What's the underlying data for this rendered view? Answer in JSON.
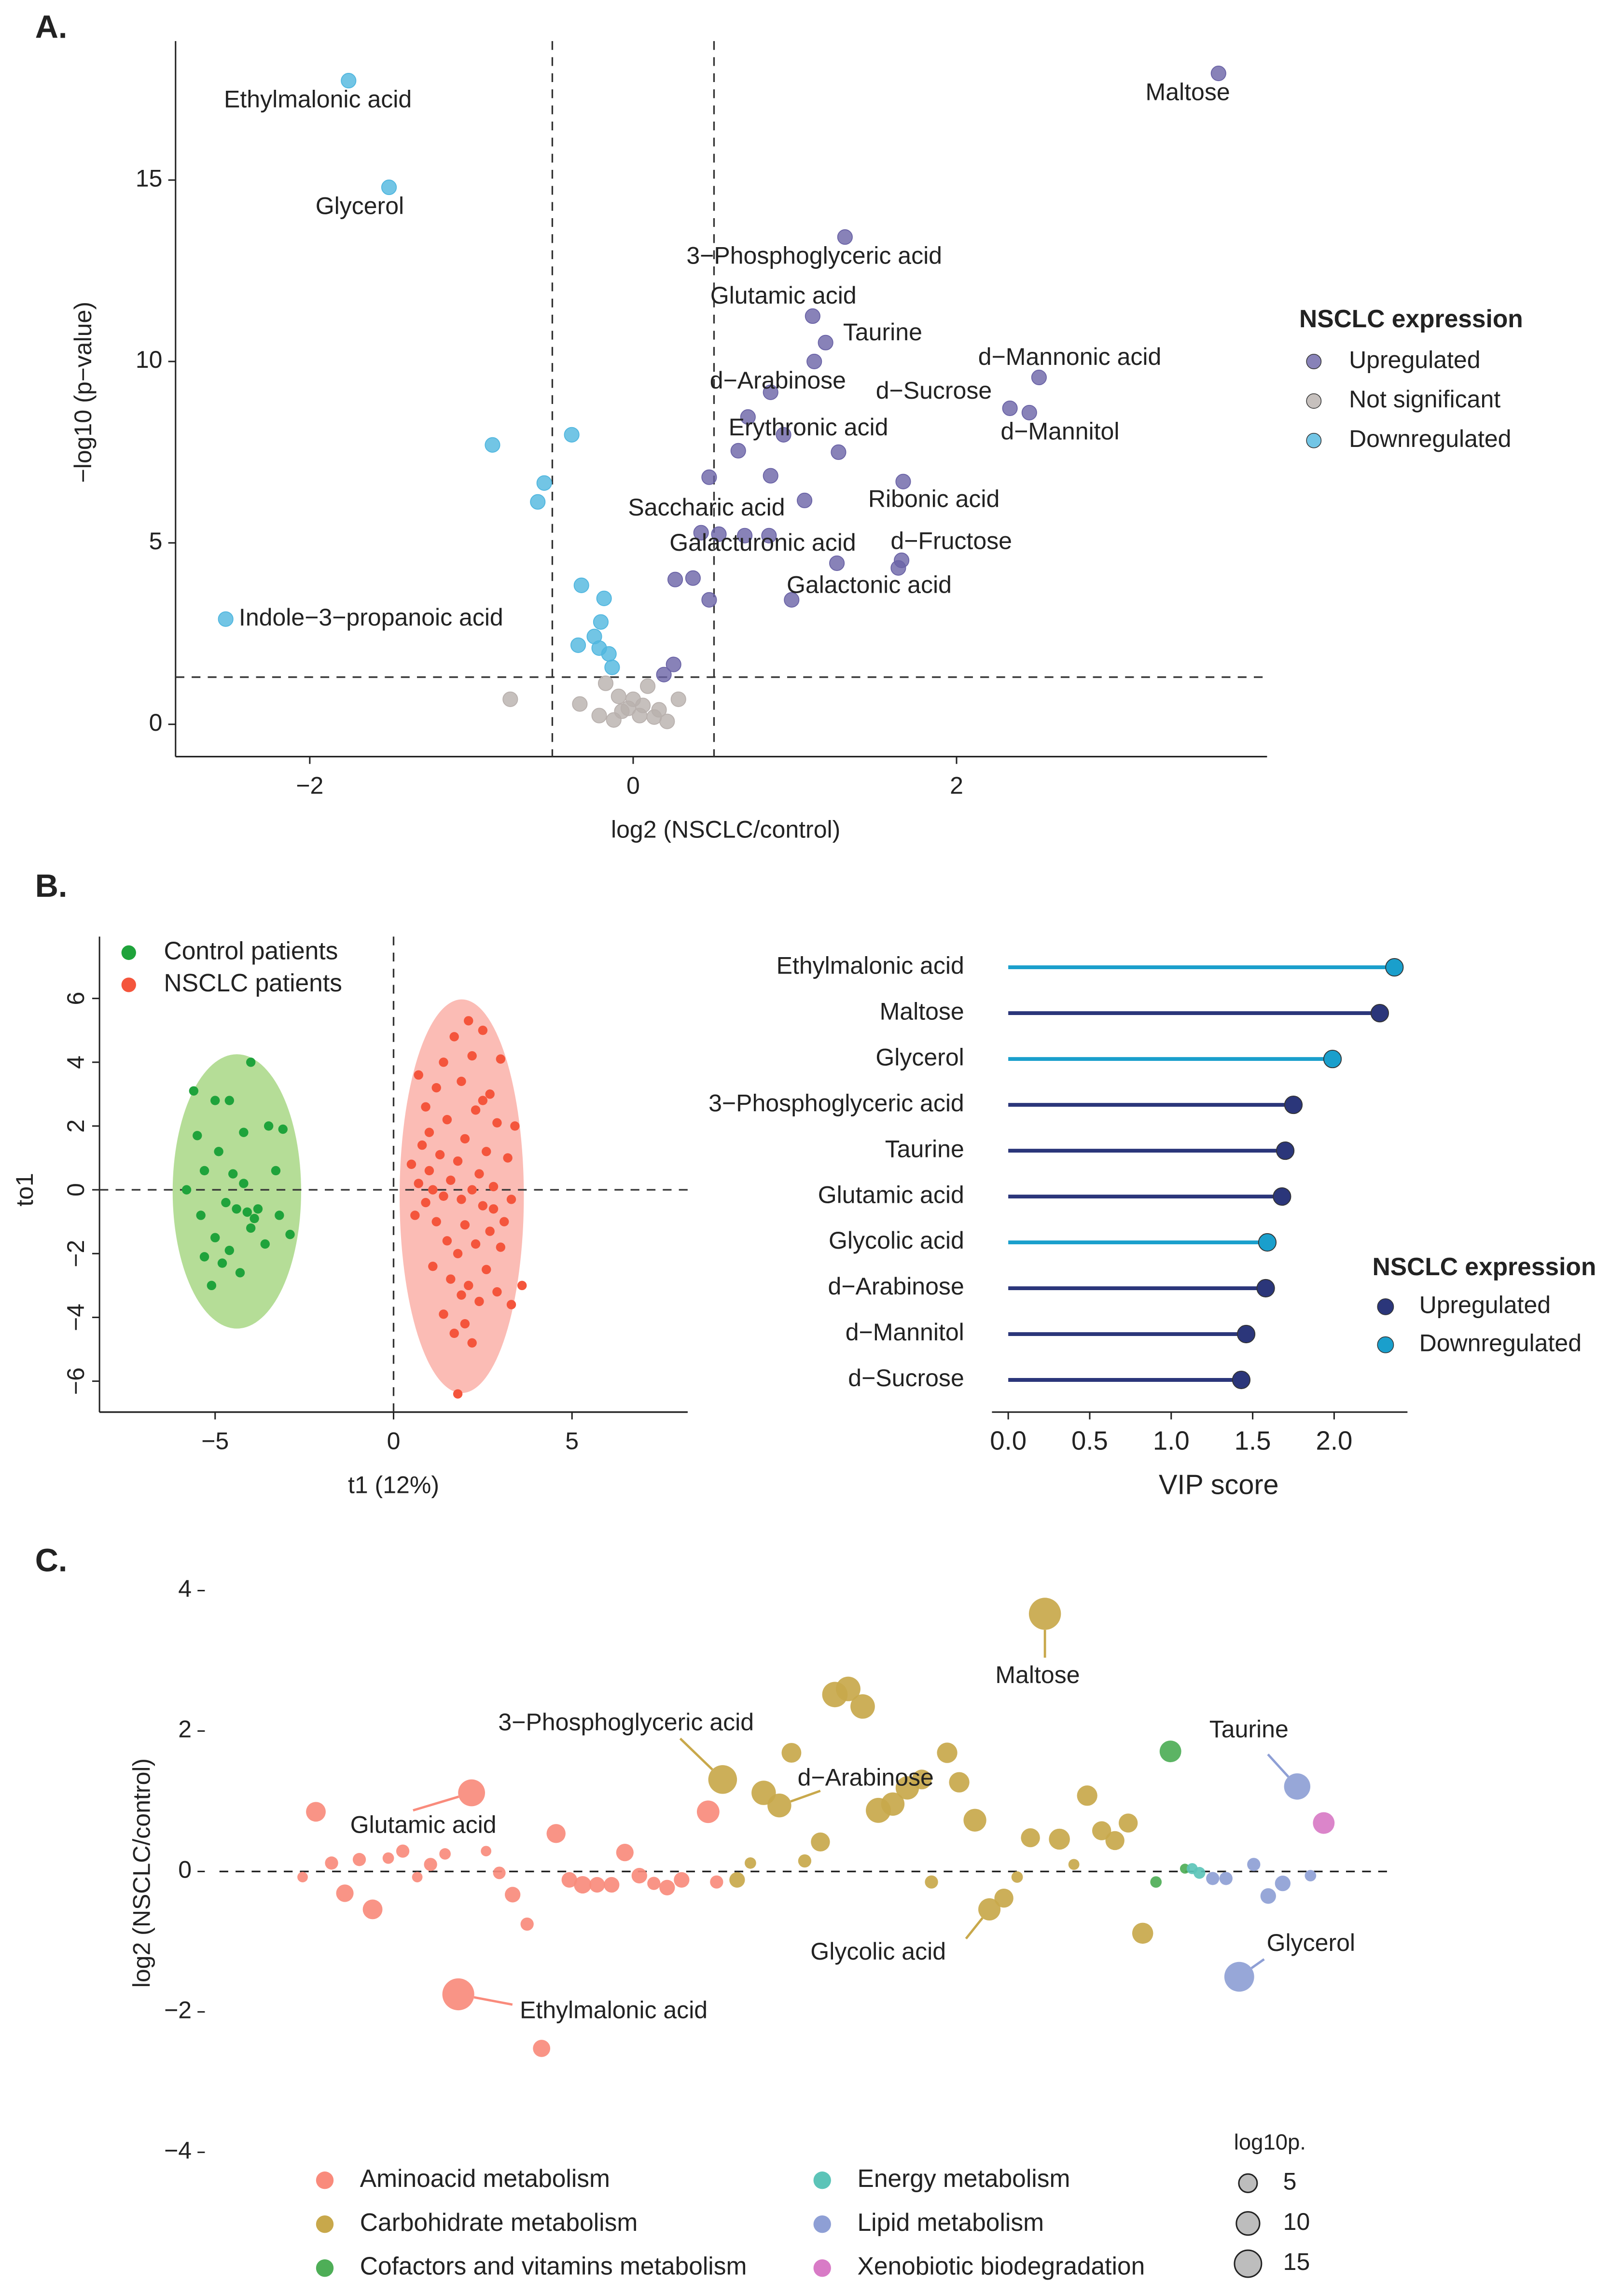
{
  "chart_data": [
    {
      "panel": "A.",
      "type": "scatter",
      "x_label": "log2 (NSCLC/control)",
      "y_label": "−log10 (p−value)",
      "xlim": [
        -2.83,
        3.92
      ],
      "ylim": [
        -0.89,
        18.83
      ],
      "xticks": [
        {
          "value": -2,
          "label": "−2"
        },
        0,
        2
      ],
      "yticks": [
        0,
        5,
        10,
        15
      ],
      "cutoff_x": [
        -0.5,
        0.5
      ],
      "cutoff_y": 1.3,
      "legend": "right",
      "legend_title": "NSCLC expression",
      "series": [
        {
          "name": "Upregulated",
          "color": "#6a63a6",
          "x": [
            3.62,
            1.31,
            1.11,
            1.19,
            1.12,
            0.85,
            2.51,
            2.33,
            2.45,
            0.71,
            0.93,
            0.65,
            1.27,
            0.47,
            0.85,
            1.67,
            1.06,
            0.42,
            0.53,
            0.69,
            0.84,
            1.66,
            1.64,
            1.26,
            0.26,
            0.37,
            0.98,
            0.47,
            0.25,
            0.19
          ],
          "values": [
            17.94,
            13.43,
            11.25,
            10.52,
            10.0,
            9.15,
            9.56,
            8.71,
            8.59,
            8.47,
            7.98,
            7.54,
            7.5,
            6.81,
            6.85,
            6.69,
            6.17,
            5.28,
            5.24,
            5.2,
            5.2,
            4.52,
            4.31,
            4.44,
            3.99,
            4.03,
            3.43,
            3.43,
            1.65,
            1.37
          ],
          "labels": [
            "Maltose",
            "3−Phosphoglyceric acid",
            "Glutamic acid",
            "Taurine",
            null,
            "d−Arabinose",
            "d−Mannonic acid",
            "d−Sucrose",
            "d−Mannitol",
            null,
            "Erythronic acid",
            null,
            null,
            null,
            null,
            "Ribonic acid",
            "Saccharic acid",
            null,
            "Galacturonic acid",
            null,
            null,
            "d−Fructose",
            null,
            null,
            null,
            null,
            "Galactonic acid",
            null,
            null,
            null
          ]
        },
        {
          "name": "Not significant",
          "color": "#b8b0ad",
          "x": [
            -0.76,
            -0.33,
            -0.17,
            0.09,
            0.28,
            -0.09,
            -0.03,
            0.04,
            0.13,
            0.21,
            -0.12,
            -0.21,
            -0.07,
            0.0,
            0.06,
            0.16
          ],
          "values": [
            0.69,
            0.56,
            1.13,
            1.05,
            0.69,
            0.77,
            0.44,
            0.24,
            0.2,
            0.08,
            0.12,
            0.24,
            0.36,
            0.69,
            0.52,
            0.4
          ]
        },
        {
          "name": "Downregulated",
          "color": "#4fb6df",
          "x": [
            -1.76,
            -1.51,
            -0.87,
            -0.38,
            -0.55,
            -0.59,
            -2.52,
            -0.32,
            -0.18,
            -0.2,
            -0.34,
            -0.24,
            -0.21,
            -0.15,
            -0.13
          ],
          "values": [
            17.74,
            14.8,
            7.7,
            7.98,
            6.65,
            6.13,
            2.9,
            3.83,
            3.47,
            2.82,
            2.18,
            2.42,
            2.1,
            1.94,
            1.57
          ],
          "labels": [
            "Ethylmalonic acid",
            "Glycerol",
            null,
            null,
            null,
            null,
            "Indole−3−propanoic acid",
            null,
            null,
            null,
            null,
            null,
            null,
            null,
            null
          ]
        }
      ]
    },
    {
      "panel": "B.",
      "type": "scatter",
      "x_label": "t1 (12%)",
      "y_label": "to1",
      "xlim": [
        -8.24,
        8.24
      ],
      "ylim": [
        -6.97,
        7.94
      ],
      "xticks": [
        {
          "value": -5,
          "label": "−5"
        },
        0,
        5
      ],
      "yticks": [
        {
          "value": -6,
          "label": "−6"
        },
        {
          "value": -4,
          "label": "−4"
        },
        {
          "value": -2,
          "label": "−2"
        },
        0,
        2,
        4,
        6
      ],
      "legend": "top-left",
      "series": [
        {
          "name": "Control patients",
          "color": "#1fa33b",
          "ellipse_color": "#b5dd97",
          "ellipse": {
            "cx": -4.39,
            "cy": -0.05,
            "rx": 1.8,
            "ry": 4.3
          },
          "x": [
            -5.6,
            -5.0,
            -4.0,
            -3.5,
            -3.1,
            -4.9,
            -5.3,
            -5.8,
            -4.5,
            -4.2,
            -3.8,
            -3.2,
            -2.9,
            -4.7,
            -4.4,
            -4.1,
            -3.9,
            -5.0,
            -4.6,
            -5.3,
            -4.3,
            -4.8,
            -5.1,
            -3.6,
            -4.0,
            -5.5,
            -4.2,
            -3.3,
            -4.6,
            -5.4
          ],
          "values": [
            3.1,
            2.8,
            4.0,
            2.0,
            1.9,
            1.2,
            0.6,
            0.0,
            0.5,
            0.2,
            -0.6,
            -0.8,
            -1.4,
            -0.4,
            -0.6,
            -0.7,
            -0.9,
            -1.5,
            -1.9,
            -2.1,
            -2.6,
            -2.3,
            -3.0,
            -1.7,
            -1.2,
            1.7,
            1.8,
            0.6,
            2.8,
            -0.8
          ]
        },
        {
          "name": "NSCLC patients",
          "color": "#f4553c",
          "ellipse_color": "#fbbcb5",
          "ellipse": {
            "cx": 1.91,
            "cy": -0.2,
            "rx": 1.74,
            "ry": 6.17
          },
          "x": [
            2.1,
            2.5,
            1.7,
            3.0,
            0.7,
            2.2,
            1.2,
            2.7,
            1.9,
            3.4,
            0.9,
            1.5,
            2.3,
            2.9,
            1.0,
            2.0,
            2.6,
            1.3,
            3.2,
            0.5,
            1.8,
            2.4,
            0.7,
            1.1,
            1.6,
            2.2,
            2.8,
            3.3,
            0.9,
            1.4,
            1.9,
            2.5,
            0.6,
            1.2,
            2.0,
            2.7,
            3.0,
            1.5,
            1.8,
            2.3,
            1.1,
            2.6,
            1.6,
            2.1,
            3.6,
            3.3,
            1.9,
            2.4,
            1.4,
            2.0,
            2.9,
            1.7,
            2.2,
            1.8,
            0.8,
            2.5,
            1.4,
            2.8,
            1.0,
            3.1
          ],
          "values": [
            5.3,
            5.0,
            4.8,
            4.1,
            3.6,
            4.2,
            3.2,
            3.0,
            3.4,
            2.0,
            2.6,
            2.2,
            2.5,
            2.1,
            1.8,
            1.6,
            1.2,
            1.1,
            1.0,
            0.8,
            0.9,
            0.5,
            0.2,
            0.0,
            0.3,
            0.0,
            0.1,
            -0.3,
            -0.4,
            -0.2,
            -0.3,
            -0.5,
            -0.8,
            -1.0,
            -1.1,
            -1.3,
            -1.8,
            -1.6,
            -2.0,
            -1.7,
            -2.4,
            -2.5,
            -2.8,
            -3.0,
            -3.0,
            -3.6,
            -3.3,
            -3.5,
            -3.9,
            -4.2,
            -3.2,
            -4.5,
            -4.8,
            -6.4,
            1.4,
            2.8,
            4.0,
            -0.6,
            0.6,
            -1.0
          ]
        }
      ]
    },
    {
      "type": "lollipop",
      "x_label": "VIP score",
      "legend_title": "NSCLC expression",
      "categories": [
        "Ethylmalonic acid",
        "Maltose",
        "Glycerol",
        "3−Phosphoglyceric acid",
        "Taurine",
        "Glutamic acid",
        "Glycolic acid",
        "d−Arabinose",
        "d−Mannitol",
        "d−Sucrose"
      ],
      "xlim": [
        -0.1,
        2.45
      ],
      "xticks": [
        {
          "value": 0,
          "label": "0.0"
        },
        0.5,
        {
          "value": 1,
          "label": "1.0"
        },
        1.5,
        {
          "value": 2,
          "label": "2.0"
        }
      ],
      "series": [
        {
          "name": "Upregulated",
          "color": "#2b367a",
          "values": [
            null,
            2.28,
            null,
            1.75,
            1.7,
            1.68,
            null,
            1.58,
            1.46,
            1.43
          ]
        },
        {
          "name": "Downregulated",
          "color": "#1a9fcc",
          "values": [
            2.37,
            null,
            1.99,
            null,
            null,
            null,
            1.59,
            null,
            null,
            null
          ]
        }
      ]
    },
    {
      "panel": "C.",
      "type": "bubble",
      "y_label": "log2 (NSCLC/control)",
      "xlim": [
        0,
        100
      ],
      "ylim": [
        -4.19,
        4.25
      ],
      "yticks": [
        {
          "value": -4,
          "label": "−4"
        },
        {
          "value": -2,
          "label": "−2"
        },
        0,
        2,
        4
      ],
      "size_legend_title": "log10p.",
      "size_legend": [
        5,
        10,
        15
      ],
      "series": [
        {
          "name": "Aminoacid metabolism",
          "color": "#f98b7c",
          "x": [
            8.1,
            9.2,
            10.5,
            11.6,
            12.8,
            13.9,
            15.2,
            16.4,
            17.6,
            18.7,
            19.9,
            21.0,
            22.1,
            23.3,
            24.4,
            25.5,
            26.7,
            27.9,
            29.1,
            30.2,
            31.3,
            32.5,
            33.7,
            34.8,
            36.0,
            37.2,
            38.3,
            39.5,
            41.7,
            42.4
          ],
          "values": [
            -0.08,
            0.85,
            0.12,
            -0.31,
            0.17,
            -0.54,
            0.19,
            0.29,
            -0.08,
            0.1,
            0.25,
            -1.75,
            1.12,
            0.29,
            -0.02,
            -0.33,
            -0.75,
            -2.52,
            0.54,
            -0.12,
            -0.19,
            -0.19,
            -0.19,
            0.27,
            -0.06,
            -0.17,
            -0.23,
            -0.12,
            0.85,
            -0.15
          ],
          "sizes": [
            0.3,
            4.5,
            1,
            3,
            1,
            4.5,
            0.5,
            1,
            0.3,
            1,
            0.5,
            17.7,
            11.2,
            0.3,
            0.8,
            2,
            1,
            2.9,
            4,
            2,
            3,
            2,
            2,
            3,
            2,
            1,
            2,
            2,
            6.8,
            1
          ],
          "labels": [
            null,
            null,
            null,
            null,
            null,
            null,
            null,
            null,
            null,
            null,
            null,
            "Ethylmalonic acid",
            "Glutamic acid",
            null,
            null,
            null,
            null,
            null,
            null,
            null,
            null,
            null,
            null,
            null,
            null,
            null,
            null,
            null,
            null,
            null
          ]
        },
        {
          "name": "Carbohidrate metabolism",
          "color": "#c8a84b",
          "x": [
            42.9,
            44.1,
            45.2,
            46.3,
            47.6,
            48.6,
            49.7,
            51.0,
            52.2,
            53.3,
            54.5,
            55.8,
            57.0,
            58.2,
            59.4,
            60.2,
            61.5,
            62.5,
            63.8,
            65.0,
            66.2,
            67.3,
            68.4,
            69.6,
            70.8,
            72.0,
            73.1,
            74.3,
            75.4,
            76.5,
            77.7
          ],
          "values": [
            1.31,
            -0.12,
            0.12,
            1.12,
            0.94,
            1.69,
            0.15,
            0.42,
            2.52,
            2.6,
            2.35,
            0.87,
            0.96,
            1.19,
            1.31,
            -0.15,
            1.69,
            1.27,
            0.73,
            -0.54,
            -0.38,
            -0.08,
            0.48,
            3.67,
            0.46,
            0.1,
            1.08,
            0.58,
            0.44,
            0.69,
            -0.88
          ],
          "sizes": [
            13.4,
            2,
            0.5,
            8.5,
            8,
            4.5,
            1,
            4,
            9.6,
            8.7,
            8.6,
            9.15,
            7.5,
            7.5,
            4.5,
            1,
            5,
            5,
            7,
            6.5,
            4,
            0.5,
            4,
            17.9,
            5.5,
            0.4,
            5,
            4,
            4,
            4,
            5.5
          ],
          "labels": [
            "3−Phosphoglyceric acid",
            null,
            null,
            null,
            "d−Arabinose",
            null,
            null,
            null,
            null,
            null,
            null,
            null,
            null,
            null,
            null,
            null,
            null,
            null,
            null,
            "Glycolic acid",
            null,
            null,
            null,
            "Maltose",
            null,
            null,
            null,
            null,
            null,
            null,
            null
          ]
        },
        {
          "name": "Cofactors and vitamins metabolism",
          "color": "#4eae57",
          "x": [
            78.8,
            80.0,
            81.2
          ],
          "values": [
            -0.15,
            1.71,
            0.04
          ],
          "sizes": [
            0.5,
            6,
            0.2
          ]
        },
        {
          "name": "Energy metabolism",
          "color": "#5cc4b8",
          "x": [
            81.8,
            82.4
          ],
          "values": [
            0.04,
            -0.02
          ],
          "sizes": [
            0.4,
            0.6
          ]
        },
        {
          "name": "Lipid metabolism",
          "color": "#8e9fd5",
          "x": [
            83.5,
            84.6,
            85.7,
            86.9,
            88.1,
            89.3,
            90.5,
            91.6
          ],
          "values": [
            -0.1,
            -0.1,
            -1.5,
            0.1,
            -0.35,
            -0.17,
            1.21,
            -0.06
          ],
          "sizes": [
            1,
            1,
            14.8,
            1,
            2,
            2,
            10.5,
            0.5
          ],
          "labels": [
            null,
            null,
            "Glycerol",
            null,
            null,
            null,
            "Taurine",
            null
          ]
        },
        {
          "name": "Xenobiotic biodegradation",
          "color": "#d87bc6",
          "x": [
            92.7
          ],
          "values": [
            0.69
          ],
          "sizes": [
            6
          ]
        }
      ]
    }
  ]
}
